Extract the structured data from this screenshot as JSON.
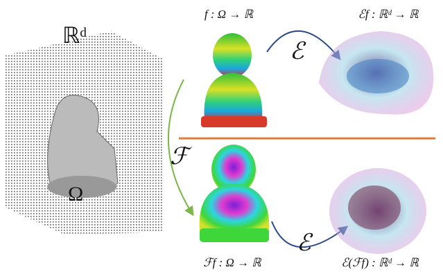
{
  "left": {
    "space_label": "ℝᵈ",
    "domain_label": "Ω"
  },
  "top": {
    "input_label": "f : Ω → ℝ",
    "operator": "ℰ",
    "output_label": "ℰf : ℝᵈ → ℝ"
  },
  "side_operator": "ℱ",
  "bottom": {
    "input_label": "ℱf : Ω → ℝ",
    "operator": "ℰ",
    "output_label": "ℰ(ℱf) : ℝᵈ → ℝ"
  }
}
